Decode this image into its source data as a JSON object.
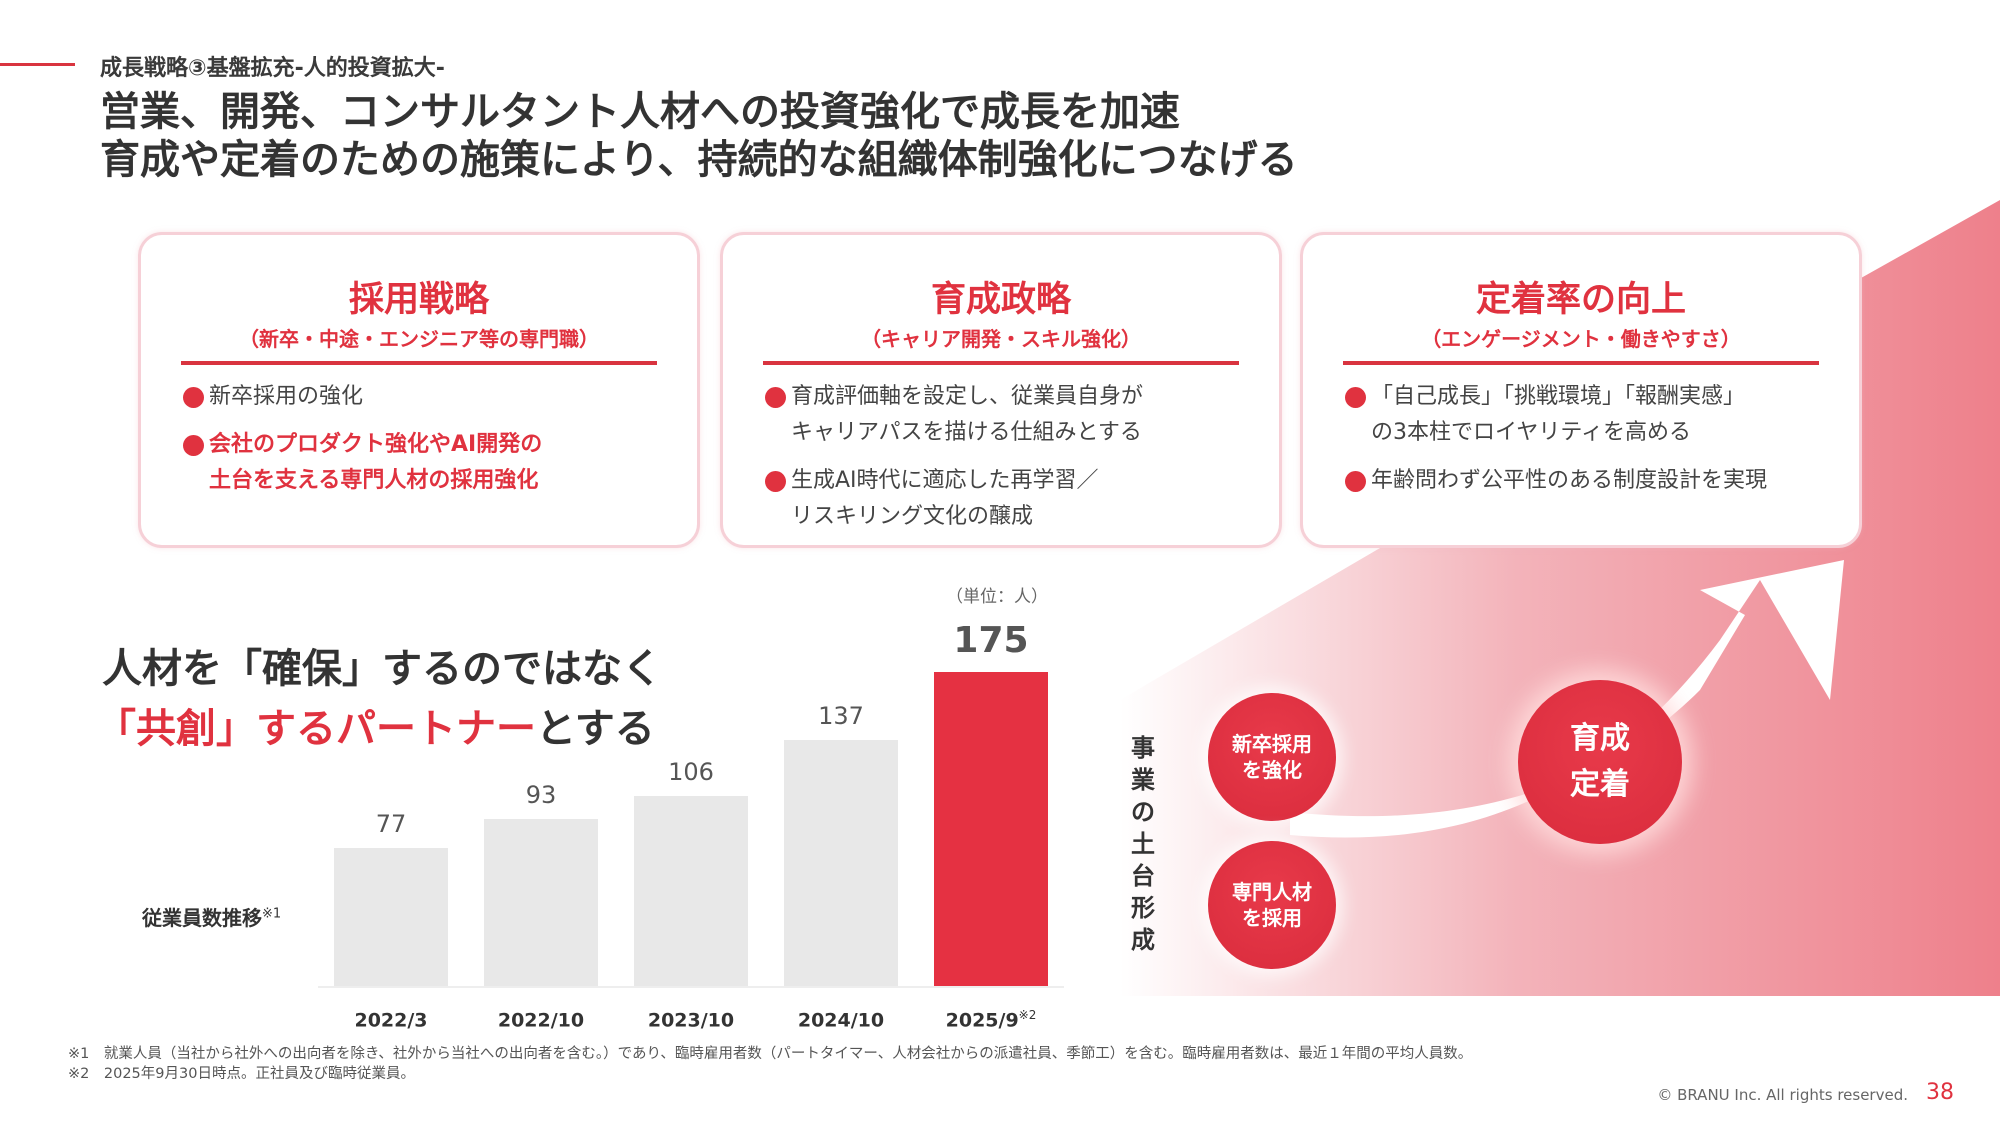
{
  "header": {
    "section": "成長戦略③基盤拡充-人的投資拡大-",
    "title_line1": "営業、開発、コンサルタント人材への投資強化で成長を加速",
    "title_line2": "育成や定着のための施策により、持続的な組織体制強化につなげる"
  },
  "cards": [
    {
      "title": "採用戦略",
      "subtitle": "（新卒・中途・エンジニア等の専門職）",
      "bullets": [
        {
          "text": "新卒採用の強化",
          "highlight": false
        },
        {
          "text": "会社のプロダクト強化やAI開発の\n土台を支える専門人材の採用強化",
          "highlight": true
        }
      ]
    },
    {
      "title": "育成政略",
      "subtitle": "（キャリア開発・スキル強化）",
      "bullets": [
        {
          "text": "育成評価軸を設定し、従業員自身が\nキャリアパスを描ける仕組みとする",
          "highlight": false
        },
        {
          "text": "生成AI時代に適応した再学習／\nリスキリング文化の醸成",
          "highlight": false
        }
      ]
    },
    {
      "title": "定着率の向上",
      "subtitle": "（エンゲージメント・働きやすさ）",
      "bullets": [
        {
          "text": "「自己成長」「挑戦環境」「報酬実感」\nの3本柱でロイヤリティを高める",
          "highlight": false
        },
        {
          "text": "年齢問わず公平性のある制度設計を実現",
          "highlight": false
        }
      ]
    }
  ],
  "message": {
    "line1": "人材を「確保」するのではなく",
    "line2_red": "「共創」するパートナー",
    "line2_rest": "とする"
  },
  "chart_data": {
    "type": "bar",
    "ylabel": "従業員数推移",
    "ylabel_note": "※1",
    "unit": "（単位：人）",
    "categories": [
      "2022/3",
      "2022/10",
      "2023/10",
      "2024/10",
      "2025/9"
    ],
    "category_notes": [
      "",
      "",
      "",
      "",
      "※2"
    ],
    "values": [
      77,
      93,
      106,
      137,
      175
    ],
    "highlight_index": 4,
    "colors": {
      "default": "#e8e8e8",
      "highlight": "#e53142"
    },
    "ylim": [
      0,
      175
    ]
  },
  "diagram": {
    "foundation_label": "事業の土台形成",
    "circle1": "新卒採用\nを強化",
    "circle2": "専門人材\nを採用",
    "circle3": "育成\n定着",
    "arrow": "arrow-up-right-icon"
  },
  "footnotes": [
    "※1　就業人員（当社から社外への出向者を除き、社外から当社への出向者を含む。）であり、臨時雇用者数（パートタイマー、人材会社からの派遣社員、季節工）を含む。臨時雇用者数は、最近１年間の平均人員数。",
    "※2　2025年9月30日時点。正社員及び臨時従業員。"
  ],
  "footer": {
    "copyright": "© BRANU Inc. All rights reserved.",
    "page": "38"
  },
  "colors": {
    "accent": "#e0323f",
    "card_border": "#f6d0d7",
    "backdrop": "#ee808b"
  }
}
